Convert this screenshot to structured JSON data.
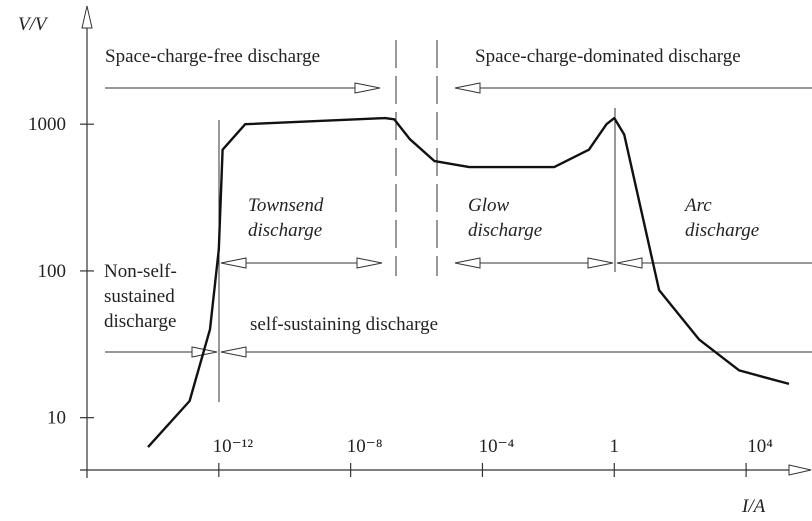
{
  "chart_data": {
    "type": "line",
    "x_label": "I/A",
    "y_label": "V/V",
    "xscale": "log",
    "yscale": "log",
    "xlim": [
      1e-16,
      1000000.0
    ],
    "ylim": [
      4.4,
      6000
    ],
    "xticks": [
      {
        "value": 1e-12,
        "label": "10⁻¹²"
      },
      {
        "value": 1e-08,
        "label": "10⁻⁸"
      },
      {
        "value": 0.0001,
        "label": "10⁻⁴"
      },
      1,
      {
        "value": 10000,
        "label": "10⁴"
      }
    ],
    "yticks": [
      10,
      100,
      1000
    ],
    "series": [
      {
        "color": "#111",
        "x": [
          7.1e-15,
          1.3e-13,
          5.4e-13,
          1e-12,
          1.3e-12,
          6.3e-12,
          1.1e-07,
          2.1e-07,
          6.3e-07,
          3.5e-06,
          4e-05,
          0.015,
          0.17,
          0.58,
          1,
          2,
          23,
          380,
          6200,
          200000
        ],
        "values": [
          6.3,
          13,
          40,
          140,
          670,
          1000,
          1100,
          1080,
          790,
          560,
          510,
          510,
          670,
          1000,
          1100,
          850,
          74,
          34,
          21,
          17
        ]
      }
    ],
    "annotations": [
      {
        "lines": [
          "Space-charge-free discharge"
        ],
        "style": "normal"
      },
      {
        "lines": [
          "Space-charge-dominated discharge"
        ],
        "style": "normal"
      },
      {
        "lines": [
          "Townsend",
          "discharge"
        ],
        "style": "italic"
      },
      {
        "lines": [
          "Glow",
          "discharge"
        ],
        "style": "italic"
      },
      {
        "lines": [
          "Arc",
          "discharge"
        ],
        "style": "italic"
      },
      {
        "lines": [
          "Non-self-",
          "sustained",
          "discharge"
        ],
        "style": "normal"
      },
      {
        "lines": [
          "self-sustaining discharge"
        ],
        "style": "normal"
      }
    ]
  }
}
